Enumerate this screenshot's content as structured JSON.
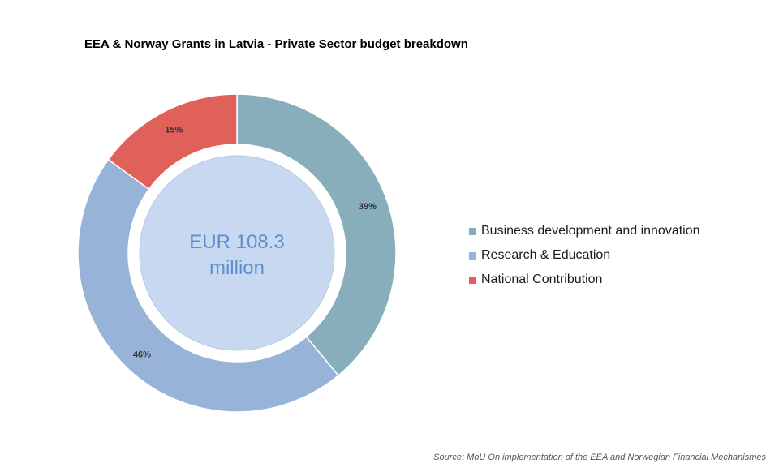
{
  "chart_data": {
    "type": "pie",
    "title": "EEA & Norway Grants in Latvia - Private Sector budget breakdown",
    "center_label": [
      "EUR 108.3",
      "million"
    ],
    "categories": [
      "Business development and innovation",
      "Research & Education",
      "National Contribution"
    ],
    "values": [
      39,
      46,
      15
    ],
    "data_labels": [
      "39%",
      "46%",
      "15%"
    ],
    "colors": [
      "#88aebb",
      "#98b3d8",
      "#e0605a"
    ],
    "center_fill": "#c7d8f0",
    "center_text_color": "#5b8fd0",
    "legend_position": "right"
  },
  "source_note": "Source: MoU On implementation of the EEA and Norwegian Financial Mechanismes"
}
